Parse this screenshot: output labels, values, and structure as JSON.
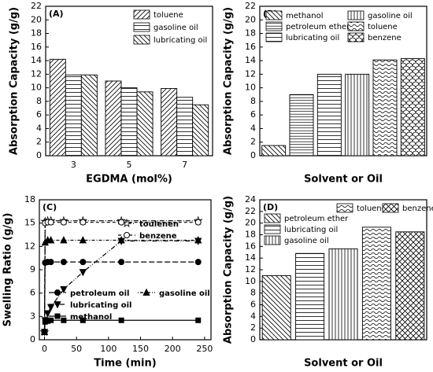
{
  "chart_data": [
    {
      "type": "bar",
      "title": "(A)",
      "x_label": "EGDMA (mol%)",
      "y_label": "Absorption Capacity (g/g)",
      "categories": [
        "3",
        "5",
        "7"
      ],
      "series": [
        {
          "name": "toluene",
          "color": "#000000",
          "hatch": "forward",
          "values": [
            14.2,
            11.0,
            9.9
          ]
        },
        {
          "name": "gasoline oil",
          "color": "#000000",
          "hatch": "horizontal",
          "values": [
            11.9,
            10.0,
            8.6
          ]
        },
        {
          "name": "lubricating oil",
          "color": "#000000",
          "hatch": "back",
          "values": [
            11.9,
            9.4,
            7.5
          ]
        }
      ],
      "ylim": [
        0,
        22
      ],
      "yticks": [
        0,
        2,
        4,
        6,
        8,
        10,
        12,
        14,
        16,
        18,
        20,
        22
      ],
      "legend": "upper right"
    },
    {
      "type": "bar",
      "title": "(B)",
      "x_label": "Solvent or Oil",
      "y_label": "Absorption Capacity (g/g)",
      "categories": [
        null,
        null,
        null,
        null,
        null,
        null
      ],
      "series": [
        {
          "name": "methanol",
          "color": "#000000",
          "hatch": "back",
          "values": [
            1.5,
            null,
            null,
            null,
            null,
            null
          ]
        },
        {
          "name": "petroleum ether",
          "color": "#000000",
          "hatch": "horizontal-dense",
          "values": [
            null,
            9.0,
            null,
            null,
            null,
            null
          ]
        },
        {
          "name": "lubricating oil",
          "color": "#000000",
          "hatch": "horizontal",
          "values": [
            null,
            null,
            12.0,
            null,
            null,
            null
          ]
        },
        {
          "name": "gasoline oil",
          "color": "#000000",
          "hatch": "vertical",
          "values": [
            null,
            null,
            null,
            12.0,
            null,
            null
          ]
        },
        {
          "name": "toluene",
          "color": "#000000",
          "hatch": "wave",
          "values": [
            null,
            null,
            null,
            null,
            14.1,
            null
          ]
        },
        {
          "name": "benzene",
          "color": "#000000",
          "hatch": "scale",
          "values": [
            null,
            null,
            null,
            null,
            null,
            14.3
          ]
        }
      ],
      "ylim": [
        0,
        22
      ],
      "yticks": [
        0,
        2,
        4,
        6,
        8,
        10,
        12,
        14,
        16,
        18,
        20,
        22
      ],
      "legend": "upper left"
    },
    {
      "type": "line",
      "title": "(C)",
      "x_label": "Time (min)",
      "y_label": "Swelling Ratio (g/g)",
      "x": [
        0,
        1,
        5,
        10,
        30,
        60,
        120,
        240
      ],
      "series": [
        {
          "name": "toulenen",
          "color": "#000000",
          "marker": "star",
          "dash": "dash-dot",
          "values": [
            1.0,
            15.2,
            15.3,
            15.3,
            15.3,
            15.3,
            15.3,
            15.3
          ]
        },
        {
          "name": "benzene",
          "color": "#000000",
          "marker": "open-circle",
          "dash": "dash",
          "values": [
            1.0,
            15.0,
            15.1,
            15.1,
            15.1,
            15.1,
            15.1,
            15.1
          ]
        },
        {
          "name": "petroleum oil",
          "color": "#000000",
          "marker": "circle",
          "dash": "long-dash",
          "values": [
            1.0,
            9.9,
            10.0,
            10.0,
            10.0,
            10.0,
            10.0,
            10.0
          ]
        },
        {
          "name": "gasoline oil",
          "color": "#000000",
          "marker": "triangle-up",
          "dash": "dot-dash",
          "values": [
            1.0,
            12.5,
            12.8,
            12.8,
            12.8,
            12.8,
            12.8,
            12.8
          ]
        },
        {
          "name": "lubricating oil",
          "color": "#000000",
          "marker": "triangle-down",
          "dash": "dash-dot-dot",
          "values": [
            1.0,
            2.5,
            3.4,
            4.2,
            6.5,
            8.7,
            12.7,
            12.7
          ]
        },
        {
          "name": "methanol",
          "color": "#000000",
          "marker": "square",
          "dash": "solid",
          "values": [
            1.0,
            2.3,
            2.4,
            2.5,
            2.5,
            2.5,
            2.5,
            2.5
          ]
        }
      ],
      "xlim": [
        -8,
        260
      ],
      "xticks": [
        0,
        50,
        100,
        150,
        200,
        250
      ],
      "ylim": [
        0,
        18
      ],
      "yticks": [
        0,
        3,
        6,
        9,
        12,
        15,
        18
      ],
      "legend": "split"
    },
    {
      "type": "bar",
      "title": "(D)",
      "x_label": "Solvent or Oil",
      "y_label": "Absorption Capacity (g/g)",
      "categories": [
        null,
        null,
        null,
        null,
        null
      ],
      "series": [
        {
          "name": "toluene",
          "color": "#000000",
          "hatch": "wave",
          "values": [
            null,
            null,
            null,
            19.3,
            null
          ]
        },
        {
          "name": "benzene",
          "color": "#000000",
          "hatch": "cross",
          "values": [
            null,
            null,
            null,
            null,
            18.5
          ]
        },
        {
          "name": "petroleum ether",
          "color": "#000000",
          "hatch": "back",
          "values": [
            11.0,
            null,
            null,
            null,
            null
          ]
        },
        {
          "name": "lubricating oil",
          "color": "#000000",
          "hatch": "horizontal",
          "values": [
            null,
            14.8,
            null,
            null,
            null
          ]
        },
        {
          "name": "gasoline oil",
          "color": "#000000",
          "hatch": "vertical",
          "values": [
            null,
            null,
            15.6,
            null,
            null
          ]
        }
      ],
      "ylim": [
        0,
        24
      ],
      "yticks": [
        0,
        2,
        4,
        6,
        8,
        10,
        12,
        14,
        16,
        18,
        20,
        22,
        24
      ],
      "legend": "top"
    }
  ]
}
